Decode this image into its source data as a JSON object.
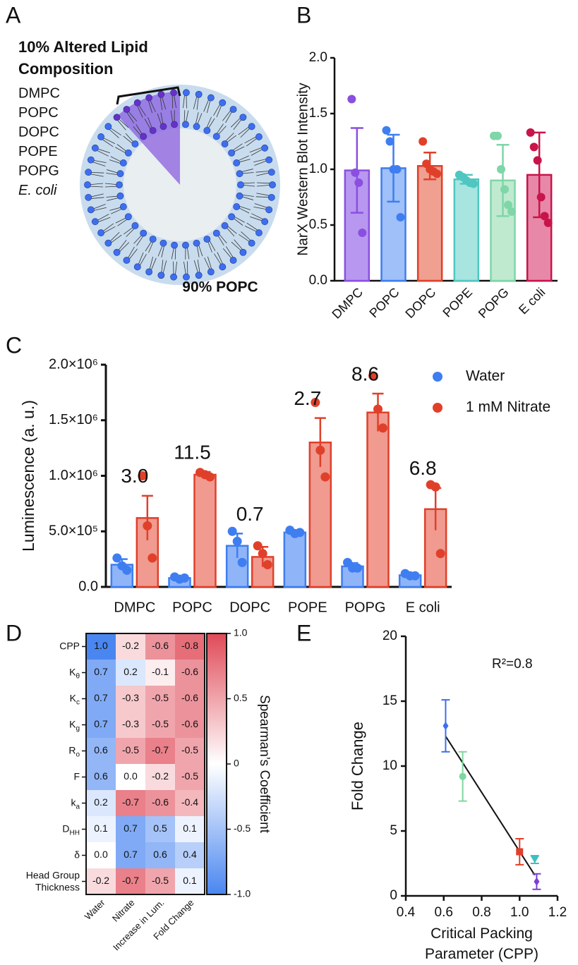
{
  "panel_labels": [
    "A",
    "B",
    "C",
    "D",
    "E"
  ],
  "diagram": {
    "title": "10% Altered Lipid Composition",
    "lipids": [
      {
        "label": "DMPC",
        "color": "#7b3fd6"
      },
      {
        "label": "POPC",
        "color": "#3e6ef0"
      },
      {
        "label": "DOPC",
        "color": "#e0402a"
      },
      {
        "label": "POPE",
        "color": "#3fbfbf"
      },
      {
        "label": "POPG",
        "color": "#7fd6a0"
      },
      {
        "label": "E. coli",
        "color": "#c8143c"
      }
    ],
    "base_label": "90% POPC"
  },
  "chart_data": [
    {
      "type": "bar",
      "ylabel": "NarX Western Blot Intensity",
      "categories": [
        "DMPC",
        "POPC",
        "DOPC",
        "POPE",
        "POPG",
        "E coli"
      ],
      "colors": [
        "#8a4fe0",
        "#3e7ef0",
        "#e0402a",
        "#4fc7c0",
        "#7fd6a8",
        "#c8144a"
      ],
      "fill_colors": [
        "#b897f0",
        "#9fc0f8",
        "#f0a090",
        "#a8e4e0",
        "#bfead0",
        "#e888a8"
      ],
      "values": [
        0.99,
        1.01,
        1.03,
        0.91,
        0.9,
        0.95
      ],
      "errors": [
        0.38,
        0.3,
        0.12,
        0.04,
        0.32,
        0.38
      ],
      "points": [
        [
          1.63,
          0.97,
          0.88,
          0.43
        ],
        [
          1.35,
          1.25,
          1.0,
          1.0,
          0.57
        ],
        [
          1.25,
          1.05,
          1.0,
          0.98,
          0.96
        ],
        [
          0.95,
          0.93,
          0.9,
          0.88,
          0.87
        ],
        [
          1.3,
          1.3,
          1.0,
          0.82,
          0.68,
          0.62
        ],
        [
          1.33,
          1.2,
          1.08,
          0.75,
          0.58,
          0.52
        ]
      ],
      "ylim": [
        0,
        2
      ],
      "yticks": [
        {
          "value": 0,
          "label": "0.0"
        },
        0.5,
        {
          "value": 1,
          "label": "1.0"
        },
        1.5,
        {
          "value": 2,
          "label": "2.0"
        }
      ]
    },
    {
      "type": "grouped_bar",
      "ylabel": "Luminescence (a. u.)",
      "categories": [
        "DMPC",
        "POPC",
        "DOPC",
        "POPE",
        "POPG",
        "E coli"
      ],
      "series": [
        {
          "name": "Water",
          "color": "#3e7ef0",
          "fill": "#8fb4f8",
          "values": [
            200000,
            80000,
            370000,
            490000,
            185000,
            105000
          ],
          "errors": [
            50000,
            15000,
            110000,
            20000,
            30000,
            15000
          ],
          "points": [
            [
              260000,
              190000,
              150000
            ],
            [
              90000,
              70000,
              80000
            ],
            [
              500000,
              410000,
              220000
            ],
            [
              510000,
              480000,
              490000
            ],
            [
              220000,
              170000,
              170000
            ],
            [
              120000,
              100000,
              100000
            ]
          ]
        },
        {
          "name": "1 mM Nitrate",
          "color": "#e0402a",
          "fill": "#f09a90",
          "values": [
            620000,
            1010000,
            270000,
            1300000,
            1570000,
            700000
          ],
          "errors": [
            200000,
            25000,
            90000,
            220000,
            170000,
            190000
          ],
          "points": [
            [
              1000000,
              550000,
              260000
            ],
            [
              1030000,
              1010000,
              990000
            ],
            [
              370000,
              300000,
              200000
            ],
            [
              1660000,
              1230000,
              990000
            ],
            [
              1900000,
              1600000,
              1430000
            ],
            [
              920000,
              900000,
              300000
            ]
          ]
        }
      ],
      "fold_change": {
        "values": [
          3,
          11.5,
          0.7,
          2.7,
          8.6,
          6.8
        ],
        "value_labels": [
          "3.0",
          "11.5",
          "0.7",
          "2.7",
          "8.6",
          "6.8"
        ]
      },
      "ylim": [
        0,
        2000000
      ],
      "yticks": [
        {
          "value": 0,
          "label": "0.0"
        },
        {
          "value": 500000,
          "label": "5.0×10⁵"
        },
        {
          "value": 1000000,
          "label": "1.0×10⁶"
        },
        {
          "value": 1500000,
          "label": "1.5×10⁶"
        },
        {
          "value": 2000000,
          "label": "2.0×10⁶"
        }
      ]
    },
    {
      "type": "heatmap",
      "rows": [
        {
          "text": "CPP"
        },
        {
          "text": "K",
          "sub": "θ"
        },
        {
          "text": "K",
          "sub": "c"
        },
        {
          "text": "K",
          "sub": "g"
        },
        {
          "text": "R",
          "sub": "o"
        },
        {
          "text": "F"
        },
        {
          "text": "k",
          "sub": "a"
        },
        {
          "text": "D",
          "sub": "HH"
        },
        {
          "text": "δ"
        },
        {
          "text": "Head Group Thickness"
        }
      ],
      "columns": [
        "Water",
        "Nitrate",
        "Increase in Lum.",
        "Fold Change"
      ],
      "values": [
        [
          1.0,
          -0.2,
          -0.6,
          -0.8
        ],
        [
          0.7,
          0.2,
          -0.1,
          -0.6
        ],
        [
          0.7,
          -0.3,
          -0.5,
          -0.6
        ],
        [
          0.7,
          -0.3,
          -0.5,
          -0.6
        ],
        [
          0.6,
          -0.5,
          -0.7,
          -0.5
        ],
        [
          0.6,
          0.0,
          -0.2,
          -0.5
        ],
        [
          0.2,
          -0.7,
          -0.6,
          -0.4
        ],
        [
          0.1,
          0.7,
          0.5,
          0.1
        ],
        [
          0.0,
          0.7,
          0.6,
          0.4
        ],
        [
          -0.2,
          -0.7,
          -0.5,
          0.1
        ]
      ],
      "value_labels": [
        [
          "1.0",
          "-0.2",
          "-0.6",
          "-0.8"
        ],
        [
          "0.7",
          "0.2",
          "-0.1",
          "-0.6"
        ],
        [
          "0.7",
          "-0.3",
          "-0.5",
          "-0.6"
        ],
        [
          "0.7",
          "-0.3",
          "-0.5",
          "-0.6"
        ],
        [
          "0.6",
          "-0.5",
          "-0.7",
          "-0.5"
        ],
        [
          "0.6",
          "0.0",
          "-0.2",
          "-0.5"
        ],
        [
          "0.2",
          "-0.7",
          "-0.6",
          "-0.4"
        ],
        [
          "0.1",
          "0.7",
          "0.5",
          "0.1"
        ],
        [
          "0.0",
          "0.7",
          "0.6",
          "0.4"
        ],
        [
          "-0.2",
          "-0.7",
          "-0.5",
          "0.1"
        ]
      ],
      "cmap": [
        "#e04a58",
        "#ffffff",
        "#4a86f0"
      ],
      "zlim": [
        -1,
        1
      ],
      "colorbar_colors": [
        "#e04a58",
        "#ffffff",
        "#4a86f0"
      ],
      "colorbar_ticks": [
        {
          "value": 1,
          "label": "1.0"
        },
        0.5,
        0,
        -0.5,
        {
          "value": -1,
          "label": "-1.0"
        }
      ],
      "colorbar_label": "Spearman’s Coefficient"
    },
    {
      "type": "scatter",
      "xlabel": "Critical Packing Parameter (CPP)",
      "ylabel": "Fold Change",
      "annotation": "R²=0.8",
      "x": [
        1.09,
        0.61,
        1.0,
        1.08,
        0.7
      ],
      "y": [
        1.1,
        13.1,
        3.4,
        2.8,
        9.2
      ],
      "errors": [
        0.6,
        2.0,
        1.0,
        0.3,
        1.9
      ],
      "colors": [
        "#7b3fd6",
        "#3e6ef0",
        "#e0402a",
        "#3fbfbf",
        "#7fd6a0"
      ],
      "markers": [
        "diamond",
        "diamond",
        "square",
        "triangle",
        "circle"
      ],
      "fit": {
        "x": [
          0.61,
          1.08
        ],
        "y": [
          12.3,
          1.6
        ]
      },
      "xlim": [
        0.4,
        1.2
      ],
      "xticks": [
        0.4,
        0.6,
        0.8,
        {
          "value": 1,
          "label": "1.0"
        },
        1.2
      ],
      "ylim": [
        0,
        20
      ],
      "yticks": [
        0,
        5,
        10,
        15,
        20
      ]
    }
  ]
}
